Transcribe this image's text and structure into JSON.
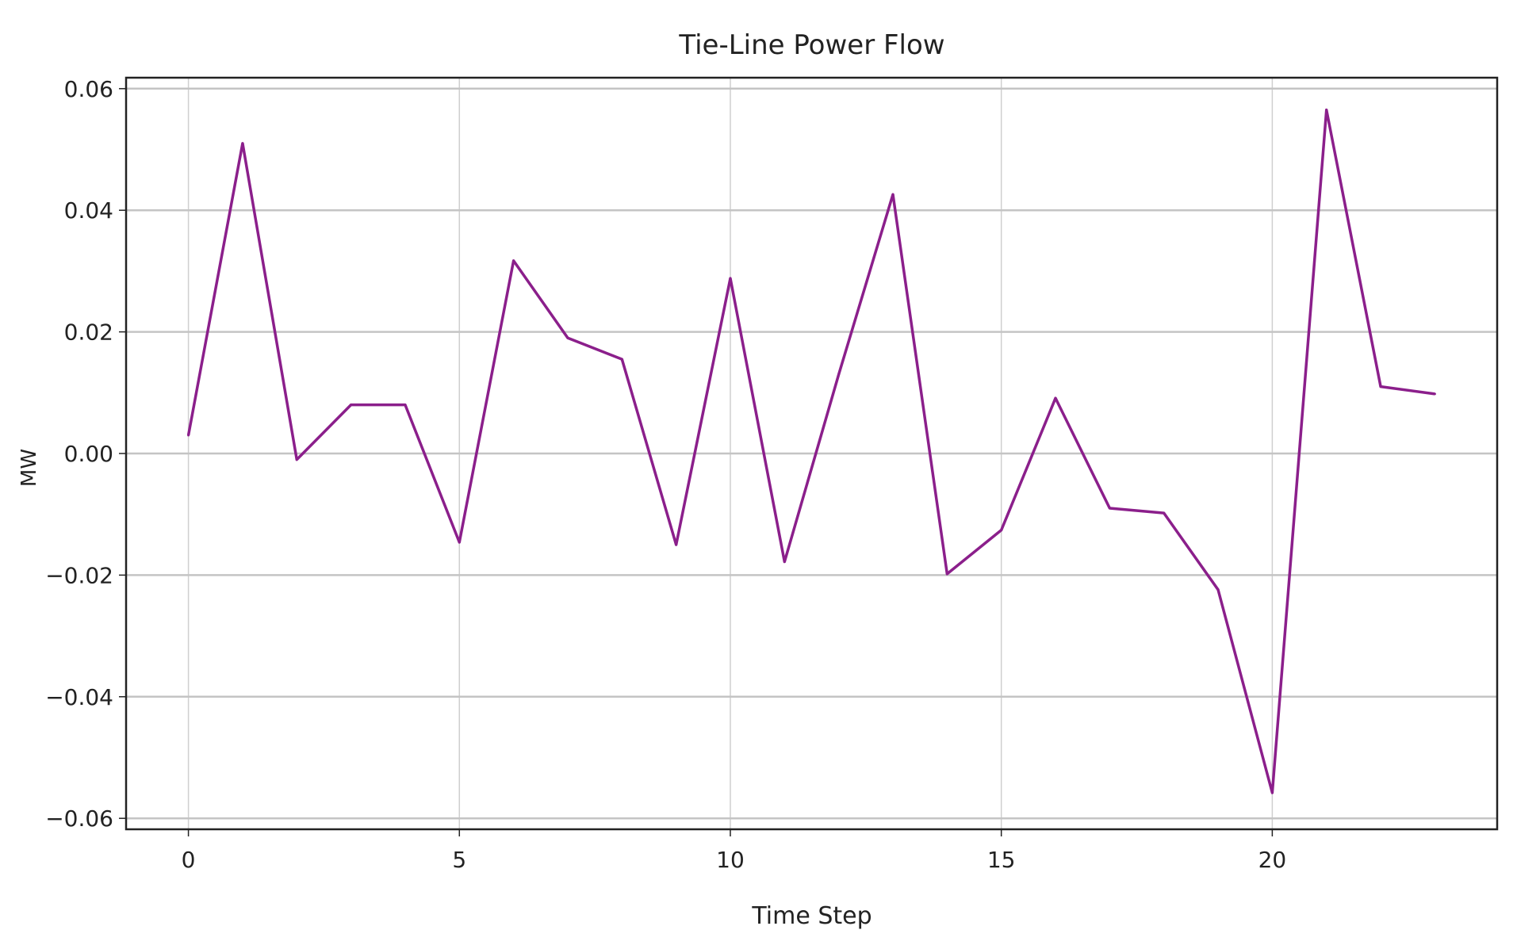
{
  "chart_data": {
    "type": "line",
    "title": "Tie-Line Power Flow",
    "xlabel": "Time Step",
    "ylabel": "MW",
    "xlim": [
      -1.15,
      24.15
    ],
    "ylim": [
      -0.0618,
      0.0618
    ],
    "xticks": [
      0,
      5,
      10,
      15,
      20
    ],
    "xtick_labels": [
      "0",
      "5",
      "10",
      "15",
      "20"
    ],
    "yticks": [
      0.06,
      0.04,
      0.02,
      0.0,
      -0.02,
      -0.04,
      -0.06
    ],
    "ytick_labels": [
      "0.06",
      "0.04",
      "0.02",
      "0.00",
      "−0.02",
      "−0.04",
      "−0.06"
    ],
    "grid": true,
    "color": "#8b1f8b",
    "x": [
      0,
      1,
      2,
      3,
      4,
      5,
      6,
      7,
      8,
      9,
      10,
      11,
      12,
      13,
      14,
      15,
      16,
      17,
      18,
      19,
      20,
      21,
      22,
      23
    ],
    "values": [
      0.003,
      0.051,
      -0.001,
      0.008,
      0.008,
      -0.0146,
      0.0317,
      0.019,
      0.0155,
      -0.015,
      0.0288,
      -0.0178,
      0.013,
      0.0426,
      -0.0198,
      -0.0126,
      0.0091,
      -0.009,
      -0.0098,
      -0.0224,
      -0.0558,
      0.0565,
      0.011,
      0.0098
    ]
  }
}
